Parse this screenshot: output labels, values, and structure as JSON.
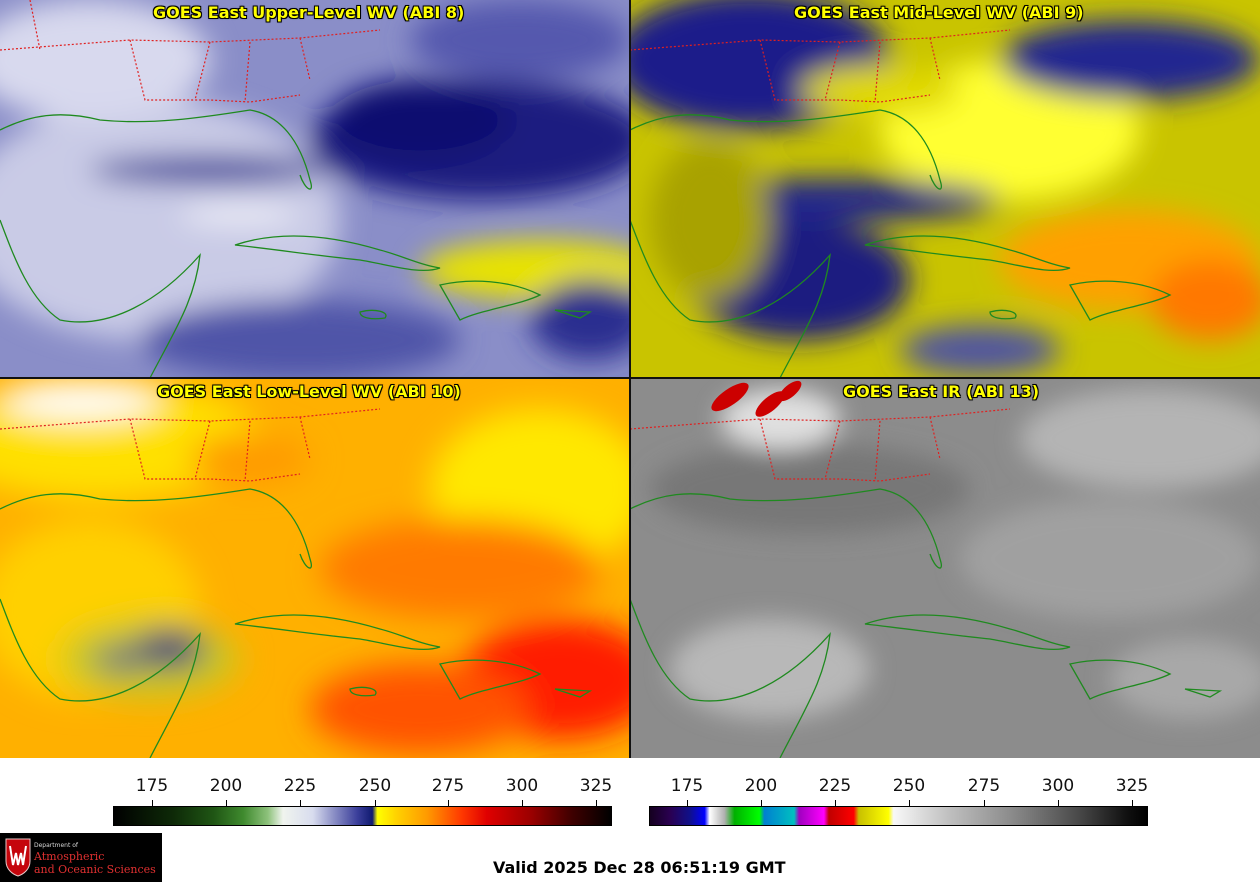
{
  "panels": [
    {
      "title": "GOES East Upper-Level WV (ABI 8)"
    },
    {
      "title": "GOES East Mid-Level WV (ABI 9)"
    },
    {
      "title": "GOES East Low-Level WV (ABI 10)"
    },
    {
      "title": "GOES East IR (ABI 13)"
    }
  ],
  "wv_scale": {
    "ticks": [
      "175",
      "200",
      "225",
      "250",
      "275",
      "300",
      "325"
    ]
  },
  "ir_scale": {
    "ticks": [
      "175",
      "200",
      "225",
      "250",
      "275",
      "300",
      "325"
    ]
  },
  "logo": {
    "dept": "Department of",
    "line1": "Atmospheric",
    "line2": "and Oceanic Sciences"
  },
  "valid_text": "Valid 2025 Dec 28 06:51:19 GMT",
  "colors": {
    "title": "#ffff00",
    "coastline": "#1f8a1f",
    "state_borders": "#e02020"
  }
}
